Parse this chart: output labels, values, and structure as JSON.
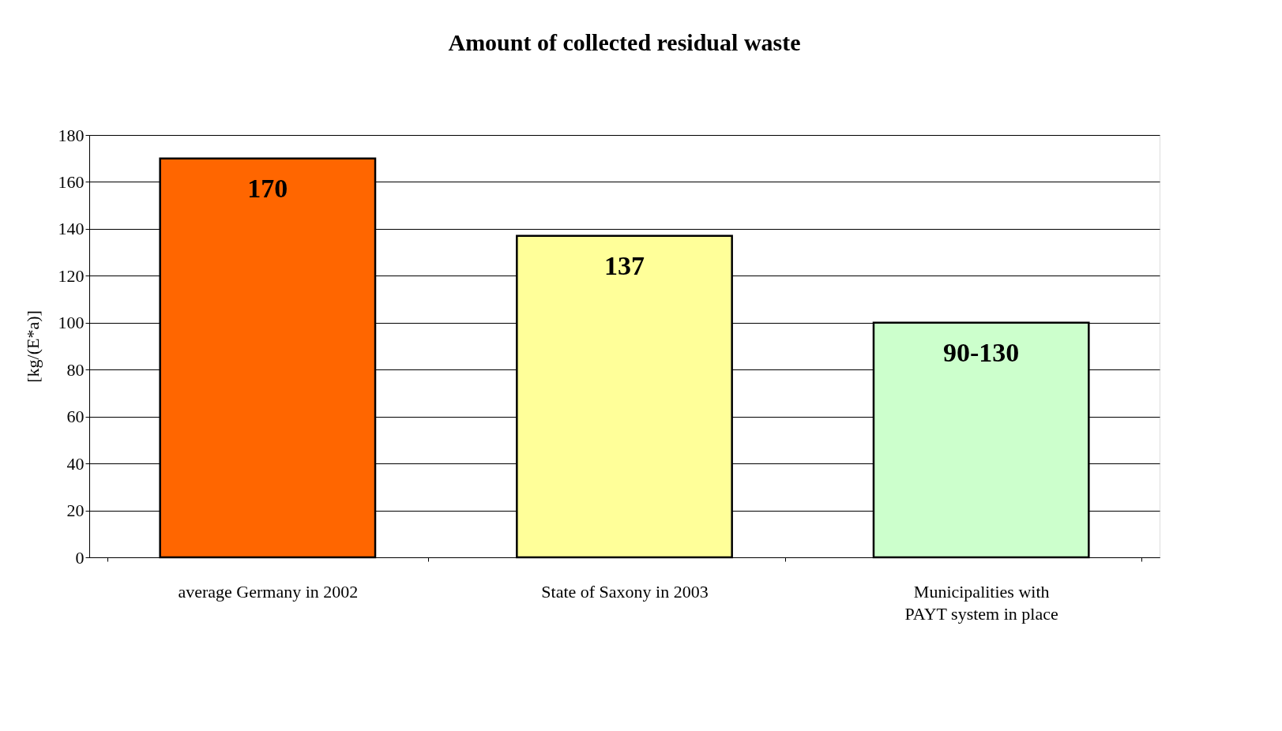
{
  "chart_data": {
    "type": "bar",
    "title": "Amount of collected residual waste",
    "ylabel": "[kg/(E*a)]",
    "categories": [
      "average Germany in 2002",
      "State of Saxony in 2003",
      "Municipalities with\nPAYT system in place"
    ],
    "values": [
      170,
      137,
      100
    ],
    "colors": [
      "#ff6600",
      "#ffff99",
      "#ccffcc"
    ],
    "value_labels": [
      "170",
      "137",
      "90-130"
    ],
    "ylim": [
      0,
      180
    ],
    "yticks": [
      0,
      20,
      40,
      60,
      80,
      100,
      120,
      140,
      160,
      180
    ],
    "grid": "y"
  }
}
